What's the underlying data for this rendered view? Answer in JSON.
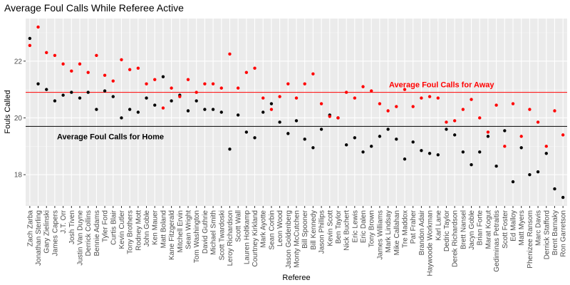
{
  "chart_data": {
    "type": "scatter",
    "title": "Average Foul Calls While Referee Active",
    "xlabel": "Referee",
    "ylabel": "Fouls Called",
    "ylim": [
      16.9,
      23.5
    ],
    "yticks": [
      18,
      20,
      22
    ],
    "grid": true,
    "legend": "none",
    "categories": [
      "Zach Zarba",
      "Jonathan Sterling",
      "Gary Zielinski",
      "James Capers",
      "J.T. Orr",
      "Josh Tiven",
      "Justin Van Duyne",
      "Derrick Collins",
      "Bennie Adams",
      "Tyler Ford",
      "Curtis Blair",
      "Kevin Cutler",
      "Tony Brothers",
      "Rodney Mott",
      "John Goble",
      "Ken Mauer",
      "Matt Boland",
      "Kane Fitzgerald",
      "Mitchell Ervin",
      "Sean Wright",
      "Tom Washington",
      "David Guthrie",
      "Michael Smith",
      "Scott Twardoski",
      "Leroy Richardson",
      "Scott Wall",
      "Lauren Holtkamp",
      "Courtney Kirkland",
      "Mark Ayotte",
      "Sean Corbin",
      "Leon Wood",
      "Jason Goldenberg",
      "Monty McCutchen",
      "Bill Spooner",
      "Bill Kennedy",
      "Jason Phillips",
      "Kevin Scott",
      "Ben Taylor",
      "Nick Buchert",
      "Eric Lewis",
      "Eric Dalen",
      "Tony Brown",
      "James Williams",
      "Mark Lindsay",
      "Mike Callahan",
      "Tre Maddox",
      "Pat Fraher",
      "Brandon Adair",
      "Haywoode Workman",
      "Karl Lane",
      "Dedric Taylor",
      "Derek Richardson",
      "Brett Nansel",
      "Jacyn Goble",
      "Brian Forte",
      "Marat Kogut",
      "Gediminas Petraitis",
      "Scott Foster",
      "Ed Malloy",
      "Matt Myers",
      "Phenizee Ransom",
      "Marc Davis",
      "Derrick Stafford",
      "Brent Barnaky",
      "Ron Garretson"
    ],
    "series": [
      {
        "name": "Home",
        "color": "#000000",
        "values": [
          22.8,
          21.2,
          21.0,
          20.6,
          20.8,
          20.9,
          20.7,
          20.9,
          20.3,
          20.95,
          20.75,
          20.0,
          20.3,
          20.2,
          20.7,
          20.45,
          21.45,
          20.6,
          20.8,
          20.25,
          20.6,
          20.3,
          20.3,
          20.2,
          18.9,
          20.1,
          19.5,
          19.3,
          20.2,
          20.5,
          19.85,
          19.45,
          19.9,
          19.25,
          18.95,
          19.6,
          20.1,
          20.0,
          19.05,
          19.3,
          18.8,
          19.0,
          19.35,
          19.6,
          19.25,
          18.55,
          19.15,
          18.85,
          18.75,
          18.7,
          19.6,
          19.4,
          18.8,
          18.35,
          18.8,
          19.35,
          18.3,
          19.55,
          17.75,
          18.95,
          18.0,
          18.1,
          18.75,
          17.5,
          17.2
        ]
      },
      {
        "name": "Away",
        "color": "#ff0000",
        "values": [
          22.55,
          23.2,
          22.3,
          22.2,
          21.9,
          21.65,
          21.9,
          21.6,
          22.2,
          21.5,
          21.3,
          22.05,
          21.7,
          21.75,
          21.2,
          21.35,
          20.35,
          21.05,
          20.75,
          21.35,
          20.9,
          21.2,
          21.2,
          21.05,
          22.25,
          21.05,
          21.6,
          21.75,
          20.7,
          20.3,
          20.75,
          21.2,
          20.7,
          21.2,
          21.55,
          20.5,
          20.05,
          20.0,
          20.9,
          20.7,
          21.1,
          20.95,
          20.5,
          20.25,
          20.4,
          21.0,
          20.4,
          20.7,
          20.75,
          20.7,
          19.85,
          19.9,
          20.3,
          20.65,
          20.0,
          19.5,
          20.45,
          19.0,
          20.5,
          19.35,
          20.3,
          19.85,
          19.0,
          20.25,
          19.4
        ]
      }
    ],
    "reference_lines": [
      {
        "label": "Average Foul Calls for Away",
        "value": 20.9,
        "color": "#ff0000"
      },
      {
        "label": "Average Foul Calls for Home",
        "value": 19.7,
        "color": "#000000"
      }
    ]
  }
}
